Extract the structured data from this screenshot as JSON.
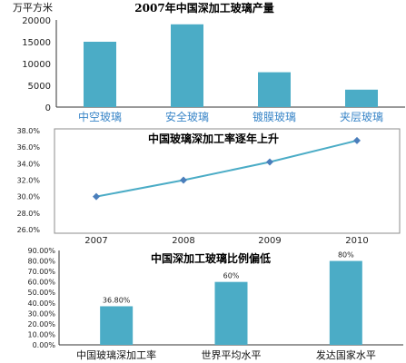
{
  "chart_data": [
    {
      "type": "bar",
      "title": "2007年中国深加工玻璃产量",
      "ylabel": "万平方米",
      "categories": [
        "中空玻璃",
        "安全玻璃",
        "镀膜玻璃",
        "夹层玻璃"
      ],
      "values": [
        15000,
        19000,
        8000,
        4000
      ],
      "ylim": [
        0,
        20000
      ],
      "yticks": [
        "0",
        "5000",
        "10000",
        "15000",
        "20000"
      ],
      "bar_color": "#4bacc6",
      "category_color": "#3a86c8"
    },
    {
      "type": "line",
      "title": "中国玻璃深加工率逐年上升",
      "x": [
        "2007",
        "2008",
        "2009",
        "2010"
      ],
      "values": [
        30.0,
        32.0,
        34.2,
        36.8
      ],
      "ylim": [
        26,
        38
      ],
      "yticks": [
        "26.0%",
        "28.0%",
        "30.0%",
        "32.0%",
        "34.0%",
        "36.0%",
        "38.0%"
      ],
      "line_color": "#4bacc6",
      "marker_color": "#4a7ebb"
    },
    {
      "type": "bar",
      "title": "中国深加工玻璃比例偏低",
      "categories": [
        "中国玻璃深加工率",
        "世界平均水平",
        "发达国家水平"
      ],
      "values": [
        36.8,
        60,
        80
      ],
      "data_labels": [
        "36.80%",
        "60%",
        "80%"
      ],
      "ylim": [
        0,
        90
      ],
      "yticks": [
        "0.00%",
        "10.00%",
        "20.00%",
        "30.00%",
        "40.00%",
        "50.00%",
        "60.00%",
        "70.00%",
        "80.00%",
        "90.00%"
      ],
      "bar_color": "#4bacc6"
    }
  ]
}
